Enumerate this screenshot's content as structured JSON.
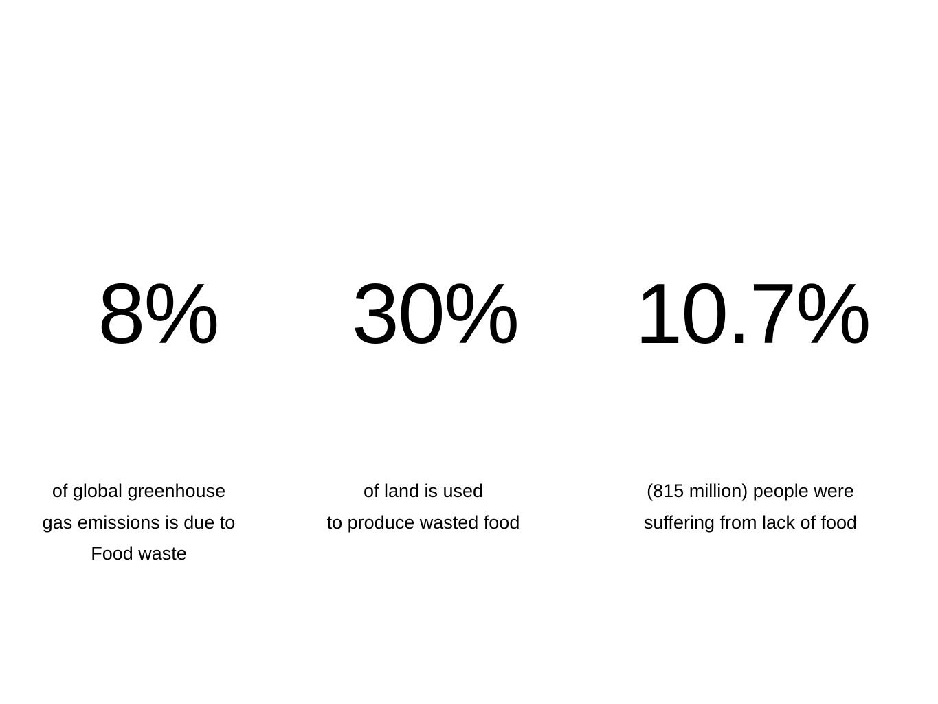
{
  "slide": {
    "stats": [
      {
        "value": "8%",
        "caption_lines": [
          "of global greenhouse",
          "gas emissions is due to",
          "Food waste"
        ]
      },
      {
        "value": "30%",
        "caption_lines": [
          "of land is used",
          "to produce wasted food"
        ]
      },
      {
        "value": "10.7%",
        "caption_lines": [
          "(815 million) people were",
          "suffering from lack of food"
        ]
      }
    ]
  }
}
